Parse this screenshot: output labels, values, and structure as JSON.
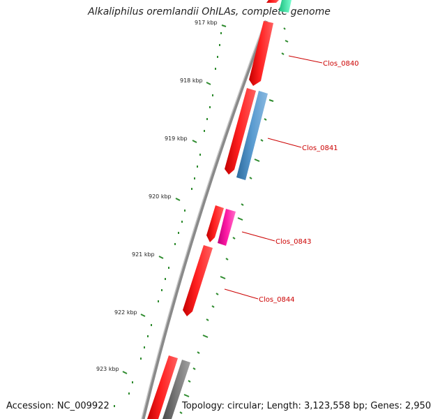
{
  "title": "Alkaliphilus oremlandii OhILAs, complete genome",
  "footer": {
    "accession": "Accession: NC_009922",
    "stats": "Topology: circular; Length: 3,123,558 bp; Genes: 2,950"
  },
  "ticks": [
    "917 kbp",
    "918 kbp",
    "919 kbp",
    "920 kbp",
    "921 kbp",
    "922 kbp",
    "923 kbp"
  ],
  "gene_labels": [
    "Clos_0840",
    "Clos_0841",
    "Clos_0843",
    "Clos_0844"
  ],
  "colors": {
    "backbone": "#8a8a8a",
    "forward_gene": "#ff0000",
    "blue_gene": "#4a8ec4",
    "magenta_gene": "#ff1aa6",
    "gray_gene": "#707070",
    "teal_gene": "#33e0a0",
    "tick_green": "#2e8b2e",
    "label_red": "#cc0000"
  }
}
